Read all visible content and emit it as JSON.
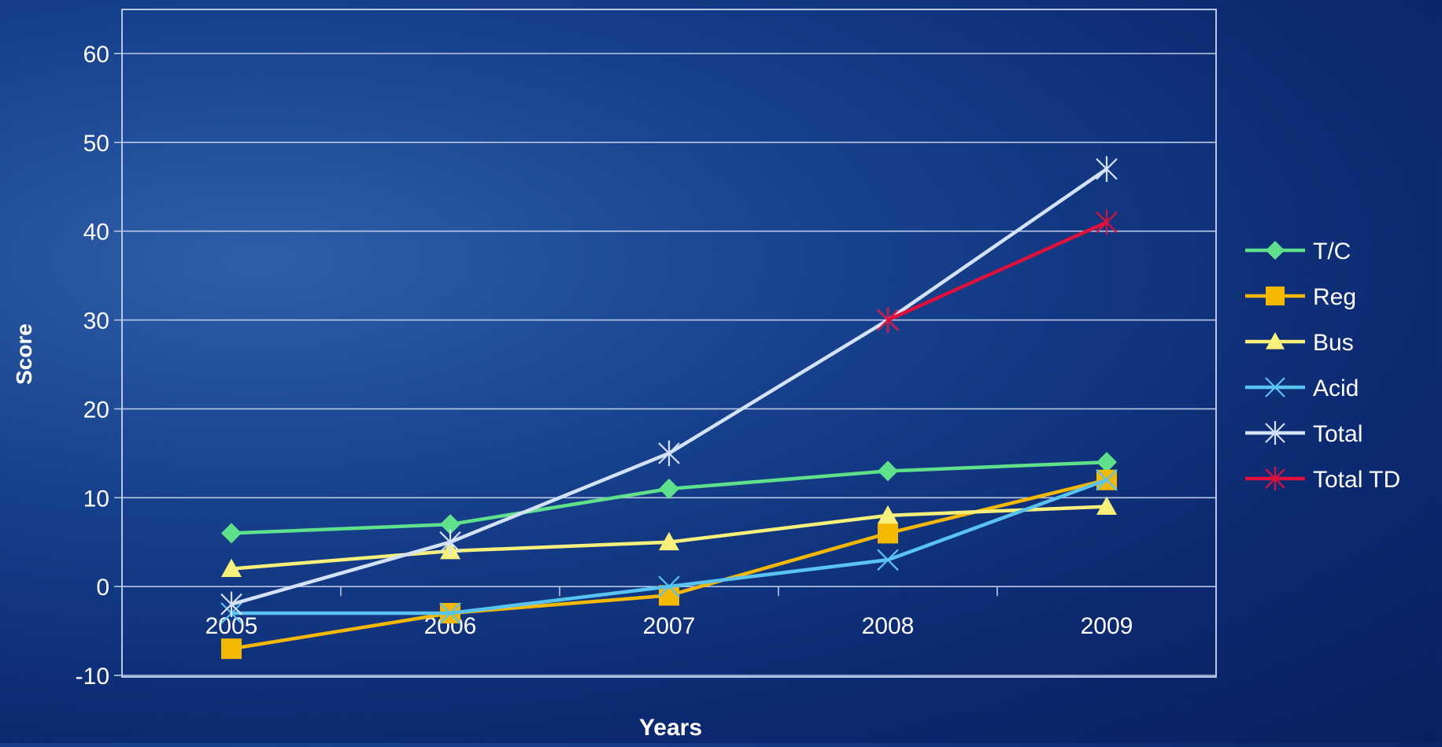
{
  "chart_data": {
    "type": "line",
    "title": "",
    "xlabel": "Years",
    "ylabel": "Score",
    "categories": [
      "2005",
      "2006",
      "2007",
      "2008",
      "2009"
    ],
    "ylim": [
      -10,
      60
    ],
    "yticks": [
      -10,
      0,
      10,
      20,
      30,
      40,
      50,
      60
    ],
    "grid": "horizontal",
    "legend_position": "right",
    "series": [
      {
        "name": "T/C",
        "values": [
          6,
          7,
          11,
          13,
          14
        ],
        "color": "#5fe08a",
        "marker": "diamond"
      },
      {
        "name": "Reg",
        "values": [
          -7,
          -3,
          -1,
          6,
          12
        ],
        "color": "#f5b800",
        "marker": "square"
      },
      {
        "name": "Bus",
        "values": [
          2,
          4,
          5,
          8,
          9
        ],
        "color": "#f7f07a",
        "marker": "triangle"
      },
      {
        "name": "Acid",
        "values": [
          -3,
          -3,
          0,
          3,
          12
        ],
        "color": "#59c4f2",
        "marker": "x"
      },
      {
        "name": "Total",
        "values": [
          -2,
          5,
          15,
          30,
          47
        ],
        "color": "#d4e2f7",
        "marker": "star"
      },
      {
        "name": "Total TD",
        "values": [
          null,
          null,
          null,
          30,
          41
        ],
        "color": "#e0103c",
        "marker": "star"
      }
    ]
  }
}
